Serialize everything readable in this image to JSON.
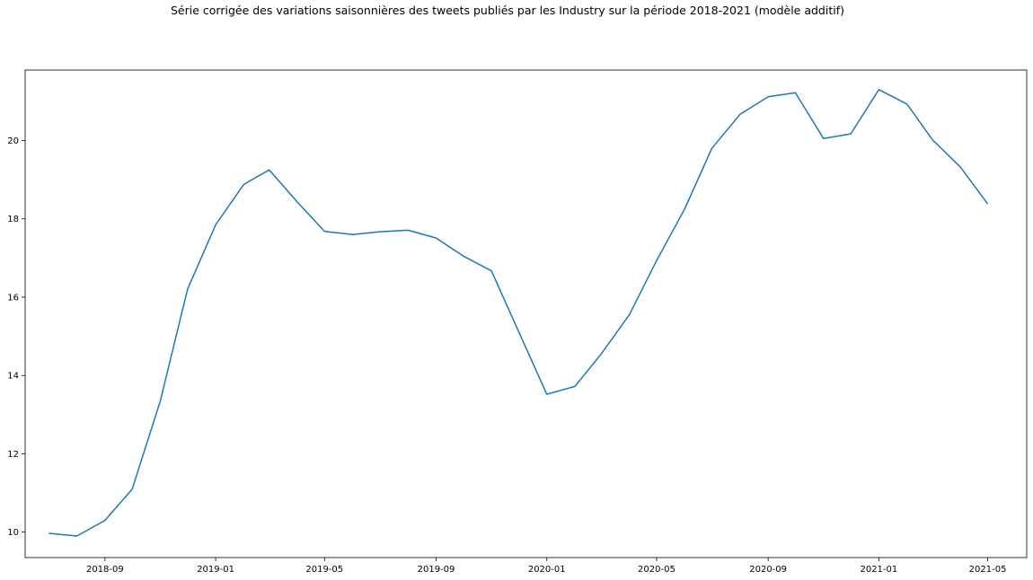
{
  "chart_data": {
    "type": "line",
    "title": "Série corrigée des variations saisonnières des tweets publiés par les Industry sur la période 2018-2021 (modèle additif)",
    "xlabel": "",
    "ylabel": "",
    "x_ticks": [
      "2018-09",
      "2019-01",
      "2019-05",
      "2019-09",
      "2020-01",
      "2020-05",
      "2020-09",
      "2021-01",
      "2021-05"
    ],
    "y_ticks": [
      10,
      12,
      14,
      16,
      18,
      20
    ],
    "xlim": [
      "2018-06-05",
      "2021-06-13"
    ],
    "ylim": [
      9.35,
      21.8
    ],
    "grid": false,
    "line_color": "#1f77b4",
    "series": [
      {
        "x": [
          "2018-07-01",
          "2018-08-01",
          "2018-09-01",
          "2018-10-01",
          "2018-11-01",
          "2018-12-01",
          "2019-01-01",
          "2019-02-01",
          "2019-03-01",
          "2019-04-01",
          "2019-05-01",
          "2019-06-01",
          "2019-07-01",
          "2019-08-01",
          "2019-09-01",
          "2019-10-01",
          "2019-11-01",
          "2019-12-01",
          "2020-01-01",
          "2020-02-01",
          "2020-03-01",
          "2020-04-01",
          "2020-05-01",
          "2020-06-01",
          "2020-07-01",
          "2020-08-01",
          "2020-09-01",
          "2020-10-01",
          "2020-11-01",
          "2020-12-01",
          "2021-01-01",
          "2021-02-01",
          "2021-03-01",
          "2021-04-01",
          "2021-05-01"
        ],
        "values": [
          9.97,
          9.9,
          10.3,
          11.1,
          13.35,
          16.2,
          17.85,
          18.88,
          19.25,
          18.43,
          17.68,
          17.6,
          17.67,
          17.71,
          17.51,
          17.05,
          16.67,
          15.12,
          13.52,
          13.72,
          14.55,
          15.55,
          16.93,
          18.25,
          19.8,
          20.67,
          21.12,
          21.22,
          20.05,
          20.17,
          21.3,
          20.93,
          20.02,
          19.32,
          18.38
        ]
      }
    ]
  }
}
